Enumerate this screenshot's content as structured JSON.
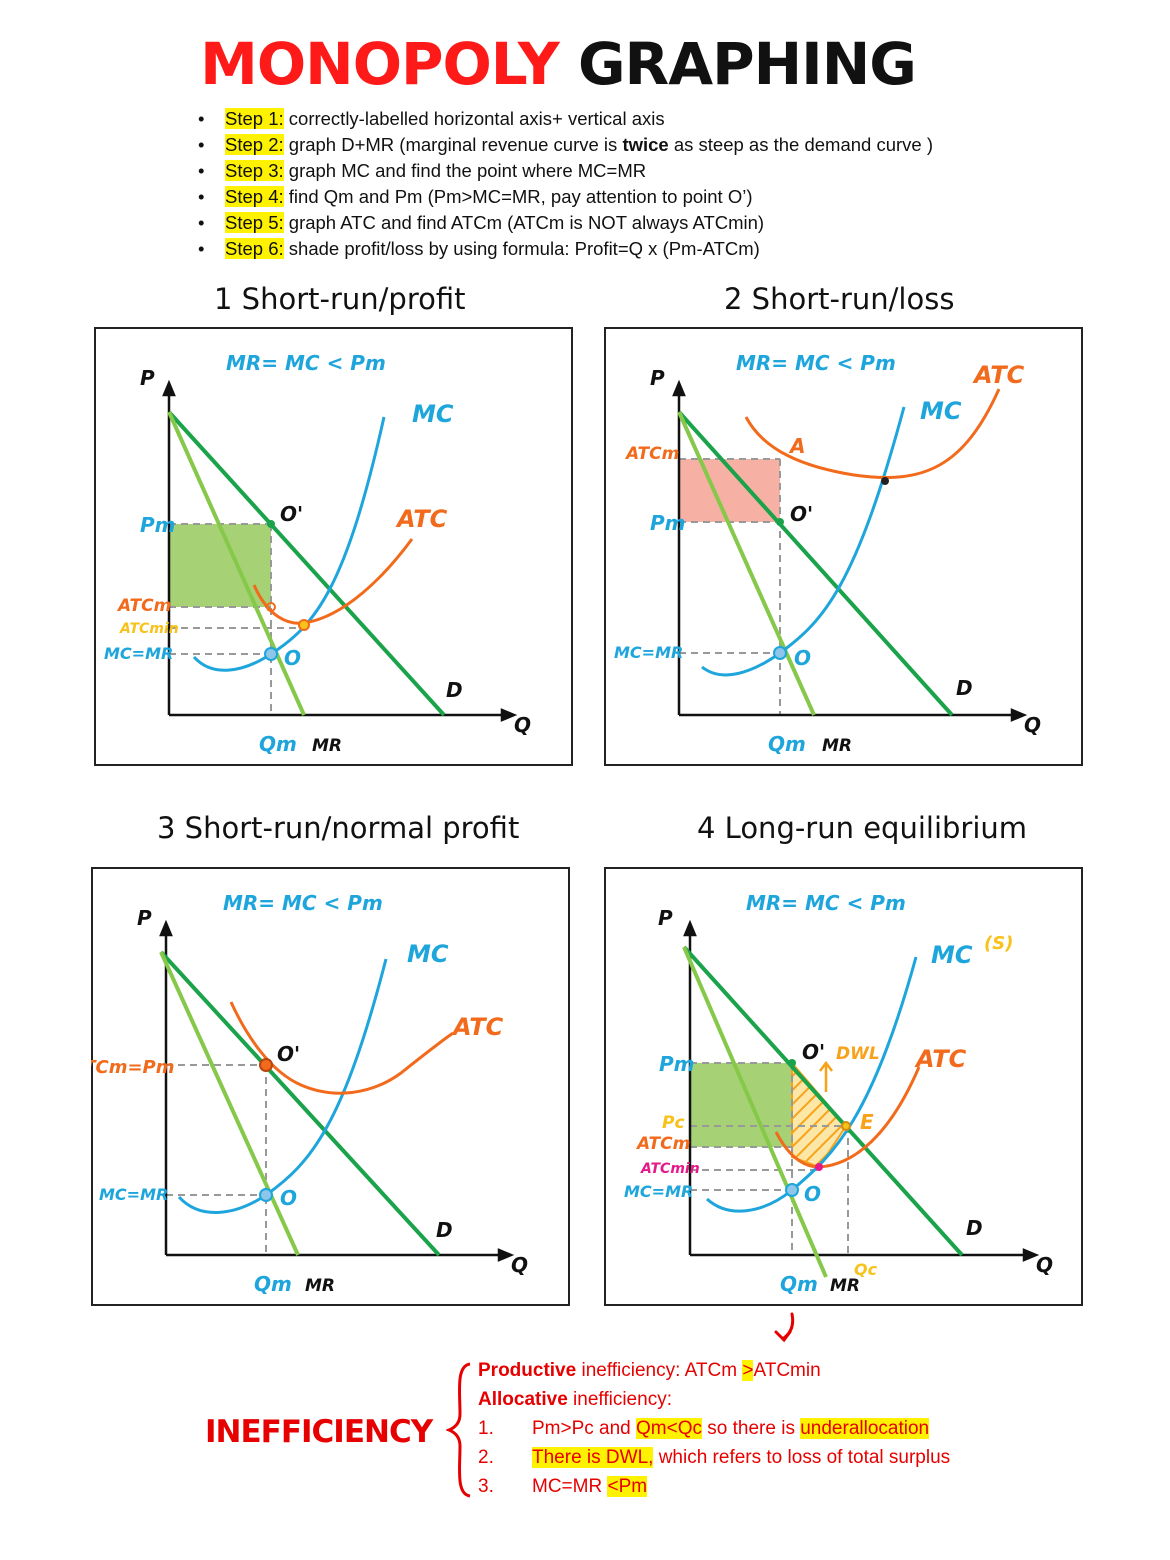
{
  "title": {
    "part1": "MONOPOLY",
    "part2": "GRAPHING"
  },
  "steps": [
    {
      "tag": "Step 1:",
      "pre": " correctly-labelled horizontal axis+ vertical axis",
      "bold": "",
      "post": ""
    },
    {
      "tag": "Step 2:",
      "pre": " graph D+MR (marginal revenue curve is ",
      "bold": "twice",
      "post": " as steep as the demand curve )"
    },
    {
      "tag": "Step 3:",
      "pre": " graph MC and find the point where MC=MR",
      "bold": "",
      "post": ""
    },
    {
      "tag": "Step 4:",
      "pre": " find Qm and Pm (Pm>MC=MR, pay attention to point O’)",
      "bold": "",
      "post": ""
    },
    {
      "tag": "Step 5:",
      "pre": " graph ATC and find ATCm (ATCm is NOT always ATCmin)",
      "bold": "",
      "post": ""
    },
    {
      "tag": "Step 6:",
      "pre": " shade profit/loss by using formula: Profit=Q x (Pm-ATCm)",
      "bold": "",
      "post": ""
    }
  ],
  "panels": [
    {
      "title": "1 Short-run/profit",
      "labels": {
        "top": "MR= MC < Pm",
        "p": "P",
        "q": "Q",
        "mc": "MC",
        "atc": "ATC",
        "d": "D",
        "mr": "MR",
        "qm": "Qm",
        "o": "O",
        "o_prime": "O'",
        "pm": "Pm",
        "atcm": "ATCm",
        "atcmin": "ATCmin",
        "mcmr": "MC=MR"
      }
    },
    {
      "title": "2 Short-run/loss",
      "labels": {
        "top": "MR= MC < Pm",
        "p": "P",
        "q": "Q",
        "mc": "MC",
        "atc": "ATC",
        "d": "D",
        "mr": "MR",
        "qm": "Qm",
        "o": "O",
        "o_prime": "O'",
        "pm": "Pm",
        "atcm": "ATCm",
        "a": "A",
        "mcmr": "MC=MR"
      }
    },
    {
      "title": "3 Short-run/normal profit",
      "labels": {
        "top": "MR= MC < Pm",
        "p": "P",
        "q": "Q",
        "mc": "MC",
        "atc": "ATC",
        "d": "D",
        "mr": "MR",
        "qm": "Qm",
        "o": "O",
        "o_prime": "O'",
        "atcm_pm": "ATCm=Pm",
        "mcmr": "MC=MR"
      }
    },
    {
      "title": "4 Long-run equilibrium",
      "labels": {
        "top": "MR= MC < Pm",
        "p": "P",
        "q": "Q",
        "mc": "MC",
        "s": "(S)",
        "atc": "ATC",
        "d": "D",
        "mr": "MR",
        "qm": "Qm",
        "qc": "Qc",
        "o": "O",
        "o_prime": "O'",
        "e": "E",
        "dwl": "DWL",
        "pm": "Pm",
        "pc": "Pc",
        "atcm": "ATCm",
        "atcmin": "ATCmin",
        "mcmr": "MC=MR"
      }
    }
  ],
  "inefficiency": {
    "word": "INEFFICIENCY",
    "productive": {
      "bold": "Productive",
      "text": " inefficiency: ATCm ",
      "hl": ">",
      "post": "ATCmin"
    },
    "allocative": {
      "bold": "Allocative",
      "text": " inefficiency:"
    },
    "items": [
      {
        "num": "1.",
        "a": "Pm>Pc and ",
        "hl1": "Qm<Qc",
        "b": " so there is ",
        "hl2": "underallocation"
      },
      {
        "num": "2.",
        "hl1": "There is DWL,",
        "b": " which refers to loss of total surplus"
      },
      {
        "num": "3.",
        "a": "MC=MR ",
        "hl1": "<Pm"
      }
    ]
  },
  "colors": {
    "red": "#ff1a1a",
    "blue": "#1ea5dc",
    "orange": "#f26a1b",
    "green_dark": "#1aa34a",
    "green_light": "#86c94a",
    "profit_fill": "#9ccc65",
    "loss_fill": "#f6a394",
    "yellow": "#f7c21a",
    "magenta": "#e6198a"
  }
}
